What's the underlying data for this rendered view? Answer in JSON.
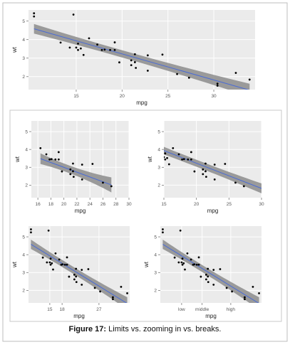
{
  "figure": {
    "caption_label": "Figure 17:",
    "caption_text": "Limits vs. zooming in vs. breaks."
  },
  "chart_data": [
    {
      "id": "top",
      "type": "scatter",
      "xlabel": "mpg",
      "ylabel": "wt",
      "xlim": [
        9.8,
        34.5
      ],
      "ylim": [
        1.3,
        5.6
      ],
      "x_ticks": [
        {
          "v": 15,
          "label": "15"
        },
        {
          "v": 20,
          "label": "20"
        },
        {
          "v": 25,
          "label": "25"
        },
        {
          "v": 30,
          "label": "30"
        }
      ],
      "y_ticks": [
        {
          "v": 2,
          "label": "2"
        },
        {
          "v": 3,
          "label": "3"
        },
        {
          "v": 4,
          "label": "4"
        },
        {
          "v": 5,
          "label": "5"
        }
      ],
      "x_grid": [
        15,
        20,
        25,
        30
      ],
      "y_grid": [
        2,
        3,
        4,
        5
      ],
      "grid": true,
      "points": [
        [
          10.4,
          5.25
        ],
        [
          10.4,
          5.42
        ],
        [
          13.3,
          3.84
        ],
        [
          14.3,
          3.57
        ],
        [
          14.7,
          5.35
        ],
        [
          15,
          3.57
        ],
        [
          15.2,
          3.44
        ],
        [
          15.2,
          3.78
        ],
        [
          15.5,
          3.52
        ],
        [
          15.8,
          3.17
        ],
        [
          16.4,
          4.07
        ],
        [
          17.3,
          3.73
        ],
        [
          17.8,
          3.44
        ],
        [
          18.1,
          3.46
        ],
        [
          18.7,
          3.44
        ],
        [
          19.2,
          3.44
        ],
        [
          19.2,
          3.85
        ],
        [
          19.7,
          2.77
        ],
        [
          21,
          2.62
        ],
        [
          21,
          2.88
        ],
        [
          21.4,
          2.78
        ],
        [
          21.4,
          3.21
        ],
        [
          21.5,
          2.47
        ],
        [
          22.8,
          2.32
        ],
        [
          22.8,
          3.15
        ],
        [
          24.4,
          3.19
        ],
        [
          26,
          2.14
        ],
        [
          27.3,
          1.94
        ],
        [
          30.4,
          1.62
        ],
        [
          30.4,
          1.51
        ],
        [
          32.4,
          2.2
        ],
        [
          33.9,
          1.84
        ]
      ],
      "fit": {
        "method": "linear",
        "x_range": [
          10.4,
          33.9
        ],
        "intercept": 6.05,
        "slope": -0.141,
        "band": [
          0.26,
          0.2,
          0.35
        ]
      }
    },
    {
      "id": "limits",
      "type": "scatter",
      "xlabel": "mpg",
      "ylabel": "wt",
      "xlim": [
        15,
        30
      ],
      "ylim": [
        1.3,
        5.6
      ],
      "x_ticks": [
        {
          "v": 16,
          "label": "16"
        },
        {
          "v": 18,
          "label": "18"
        },
        {
          "v": 20,
          "label": "20"
        },
        {
          "v": 22,
          "label": "22"
        },
        {
          "v": 24,
          "label": "24"
        },
        {
          "v": 26,
          "label": "26"
        },
        {
          "v": 28,
          "label": "28"
        },
        {
          "v": 30,
          "label": "30"
        }
      ],
      "y_ticks": [
        {
          "v": 2,
          "label": "2"
        },
        {
          "v": 3,
          "label": "3"
        },
        {
          "v": 4,
          "label": "4"
        },
        {
          "v": 5,
          "label": "5"
        }
      ],
      "x_grid": [
        16,
        18,
        20,
        22,
        24,
        26,
        28,
        30
      ],
      "y_grid": [
        2,
        3,
        4,
        5
      ],
      "grid": true,
      "points": [
        [
          16.4,
          4.07
        ],
        [
          17.3,
          3.73
        ],
        [
          17.8,
          3.44
        ],
        [
          18.1,
          3.46
        ],
        [
          18.7,
          3.44
        ],
        [
          19.2,
          3.44
        ],
        [
          19.2,
          3.85
        ],
        [
          19.7,
          2.77
        ],
        [
          21,
          2.62
        ],
        [
          21,
          2.88
        ],
        [
          21.4,
          2.78
        ],
        [
          21.4,
          3.21
        ],
        [
          21.5,
          2.47
        ],
        [
          22.8,
          2.32
        ],
        [
          22.8,
          3.15
        ],
        [
          24.4,
          3.19
        ],
        [
          26,
          2.14
        ],
        [
          27.3,
          1.94
        ]
      ],
      "fit": {
        "method": "linear",
        "x_range": [
          16.4,
          27.3
        ],
        "intercept": 5.7,
        "slope": -0.135,
        "band": [
          0.3,
          0.22,
          0.42
        ]
      }
    },
    {
      "id": "zoom",
      "type": "scatter",
      "xlabel": "mpg",
      "ylabel": "wt",
      "xlim": [
        15,
        30
      ],
      "ylim": [
        1.3,
        5.6
      ],
      "x_ticks": [
        {
          "v": 15,
          "label": "15"
        },
        {
          "v": 20,
          "label": "20"
        },
        {
          "v": 25,
          "label": "25"
        },
        {
          "v": 30,
          "label": "30"
        }
      ],
      "y_ticks": [
        {
          "v": 2,
          "label": "2"
        },
        {
          "v": 3,
          "label": "3"
        },
        {
          "v": 4,
          "label": "4"
        },
        {
          "v": 5,
          "label": "5"
        }
      ],
      "x_grid": [
        15,
        20,
        25,
        30
      ],
      "y_grid": [
        2,
        3,
        4,
        5
      ],
      "grid": true,
      "points": [
        [
          15,
          3.57
        ],
        [
          15.2,
          3.44
        ],
        [
          15.2,
          3.78
        ],
        [
          15.5,
          3.52
        ],
        [
          15.8,
          3.17
        ],
        [
          16.4,
          4.07
        ],
        [
          17.3,
          3.73
        ],
        [
          17.8,
          3.44
        ],
        [
          18.1,
          3.46
        ],
        [
          18.7,
          3.44
        ],
        [
          19.2,
          3.44
        ],
        [
          19.2,
          3.85
        ],
        [
          19.7,
          2.77
        ],
        [
          21,
          2.62
        ],
        [
          21,
          2.88
        ],
        [
          21.4,
          2.78
        ],
        [
          21.4,
          3.21
        ],
        [
          21.5,
          2.47
        ],
        [
          22.8,
          2.32
        ],
        [
          22.8,
          3.15
        ],
        [
          24.4,
          3.19
        ],
        [
          26,
          2.14
        ],
        [
          27.3,
          1.94
        ]
      ],
      "fit": {
        "method": "linear",
        "x_range": [
          10.4,
          33.9
        ],
        "intercept": 6.05,
        "slope": -0.141,
        "band": [
          0.26,
          0.2,
          0.35
        ]
      }
    },
    {
      "id": "breaks",
      "type": "scatter",
      "xlabel": "mpg",
      "ylabel": "wt",
      "xlim": [
        9.8,
        34.5
      ],
      "ylim": [
        1.3,
        5.6
      ],
      "x_ticks": [
        {
          "v": 15,
          "label": "15"
        },
        {
          "v": 18,
          "label": "18"
        },
        {
          "v": 27,
          "label": "27"
        }
      ],
      "y_ticks": [
        {
          "v": 2,
          "label": "2"
        },
        {
          "v": 3,
          "label": "3"
        },
        {
          "v": 4,
          "label": "4"
        },
        {
          "v": 5,
          "label": "5"
        }
      ],
      "x_grid": [
        15,
        18,
        27
      ],
      "y_grid": [
        2,
        3,
        4,
        5
      ],
      "grid": true,
      "points": [
        [
          10.4,
          5.25
        ],
        [
          10.4,
          5.42
        ],
        [
          13.3,
          3.84
        ],
        [
          14.3,
          3.57
        ],
        [
          14.7,
          5.35
        ],
        [
          15,
          3.57
        ],
        [
          15.2,
          3.44
        ],
        [
          15.2,
          3.78
        ],
        [
          15.5,
          3.52
        ],
        [
          15.8,
          3.17
        ],
        [
          16.4,
          4.07
        ],
        [
          17.3,
          3.73
        ],
        [
          17.8,
          3.44
        ],
        [
          18.1,
          3.46
        ],
        [
          18.7,
          3.44
        ],
        [
          19.2,
          3.44
        ],
        [
          19.2,
          3.85
        ],
        [
          19.7,
          2.77
        ],
        [
          21,
          2.62
        ],
        [
          21,
          2.88
        ],
        [
          21.4,
          2.78
        ],
        [
          21.4,
          3.21
        ],
        [
          21.5,
          2.47
        ],
        [
          22.8,
          2.32
        ],
        [
          22.8,
          3.15
        ],
        [
          24.4,
          3.19
        ],
        [
          26,
          2.14
        ],
        [
          27.3,
          1.94
        ],
        [
          30.4,
          1.62
        ],
        [
          30.4,
          1.51
        ],
        [
          32.4,
          2.2
        ],
        [
          33.9,
          1.84
        ]
      ],
      "fit": {
        "method": "linear",
        "x_range": [
          10.4,
          33.9
        ],
        "intercept": 6.05,
        "slope": -0.141,
        "band": [
          0.26,
          0.2,
          0.35
        ]
      }
    },
    {
      "id": "labels",
      "type": "scatter",
      "xlabel": "mpg",
      "ylabel": "wt",
      "xlim": [
        9.8,
        34.5
      ],
      "ylim": [
        1.3,
        5.6
      ],
      "x_ticks": [
        {
          "v": 15,
          "label": "low"
        },
        {
          "v": 20,
          "label": "middle"
        },
        {
          "v": 27,
          "label": "high"
        }
      ],
      "y_ticks": [
        {
          "v": 2,
          "label": "2"
        },
        {
          "v": 3,
          "label": "3"
        },
        {
          "v": 4,
          "label": "4"
        },
        {
          "v": 5,
          "label": "5"
        }
      ],
      "x_grid": [
        15,
        20,
        27
      ],
      "y_grid": [
        2,
        3,
        4,
        5
      ],
      "grid": true,
      "points": [
        [
          10.4,
          5.25
        ],
        [
          10.4,
          5.42
        ],
        [
          13.3,
          3.84
        ],
        [
          14.3,
          3.57
        ],
        [
          14.7,
          5.35
        ],
        [
          15,
          3.57
        ],
        [
          15.2,
          3.44
        ],
        [
          15.2,
          3.78
        ],
        [
          15.5,
          3.52
        ],
        [
          15.8,
          3.17
        ],
        [
          16.4,
          4.07
        ],
        [
          17.3,
          3.73
        ],
        [
          17.8,
          3.44
        ],
        [
          18.1,
          3.46
        ],
        [
          18.7,
          3.44
        ],
        [
          19.2,
          3.44
        ],
        [
          19.2,
          3.85
        ],
        [
          19.7,
          2.77
        ],
        [
          21,
          2.62
        ],
        [
          21,
          2.88
        ],
        [
          21.4,
          2.78
        ],
        [
          21.4,
          3.21
        ],
        [
          21.5,
          2.47
        ],
        [
          22.8,
          2.32
        ],
        [
          22.8,
          3.15
        ],
        [
          24.4,
          3.19
        ],
        [
          26,
          2.14
        ],
        [
          27.3,
          1.94
        ],
        [
          30.4,
          1.62
        ],
        [
          30.4,
          1.51
        ],
        [
          32.4,
          2.2
        ],
        [
          33.9,
          1.84
        ]
      ],
      "fit": {
        "method": "linear",
        "x_range": [
          10.4,
          33.9
        ],
        "intercept": 6.05,
        "slope": -0.141,
        "band": [
          0.26,
          0.2,
          0.35
        ]
      }
    }
  ],
  "colors": {
    "panel_bg": "#ebebeb",
    "grid_major": "#ffffff",
    "ribbon": "#8c8c8c",
    "fit_line": "#4a6bd6",
    "point": "#000000",
    "axis_text": "#555555",
    "title_text": "#222222",
    "frame": "#bdbdbd"
  }
}
